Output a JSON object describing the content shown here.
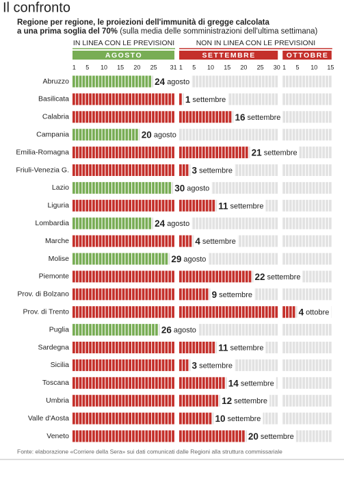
{
  "chart_data": {
    "type": "calendar-bar",
    "title": "Il confronto",
    "subtitle_bold": "Regione per regione, le proiezioni dell'immunità di gregge calcolata",
    "subtitle_bold_2": "a una prima soglia del 70%",
    "subtitle": "(sulla media delle somministrazioni dell'ultima settimana)",
    "groups": [
      {
        "label": "IN LINEA CON LE PREVISIONI",
        "color": "#78ad55"
      },
      {
        "label": "NON IN LINEA CON LE PREVISIONI",
        "color": "#c4302b"
      }
    ],
    "months": [
      {
        "name": "AGOSTO",
        "group": 0,
        "ticks": [
          1,
          5,
          10,
          15,
          20,
          25,
          31
        ]
      },
      {
        "name": "SETTEMBRE",
        "group": 1,
        "ticks": [
          1,
          5,
          10,
          15,
          20,
          25,
          30
        ]
      },
      {
        "name": "OTTOBRE",
        "group": 1,
        "ticks": [
          1,
          5,
          10,
          15
        ]
      }
    ],
    "categories": [
      "Abruzzo",
      "Basilicata",
      "Calabria",
      "Campania",
      "Emilia-Romagna",
      "Friuli-Venezia G.",
      "Lazio",
      "Liguria",
      "Lombardia",
      "Marche",
      "Molise",
      "Piemonte",
      "Prov. di Bolzano",
      "Prov. di Trento",
      "Puglia",
      "Sardegna",
      "Sicilia",
      "Toscana",
      "Umbria",
      "Valle d'Aosta",
      "Veneto"
    ],
    "values": [
      24,
      1,
      16,
      20,
      21,
      3,
      30,
      11,
      24,
      4,
      29,
      22,
      9,
      4,
      26,
      11,
      3,
      14,
      12,
      10,
      20
    ],
    "value_months": [
      "agosto",
      "settembre",
      "settembre",
      "agosto",
      "settembre",
      "settembre",
      "agosto",
      "settembre",
      "agosto",
      "settembre",
      "agosto",
      "settembre",
      "settembre",
      "ottobre",
      "agosto",
      "settembre",
      "settembre",
      "settembre",
      "settembre",
      "settembre",
      "settembre"
    ],
    "empty_color": "#e2e2e2",
    "source": "Fonte: elaborazione «Corriere della Sera» sui dati comunicati dalle Regioni alla struttura commissariale"
  }
}
